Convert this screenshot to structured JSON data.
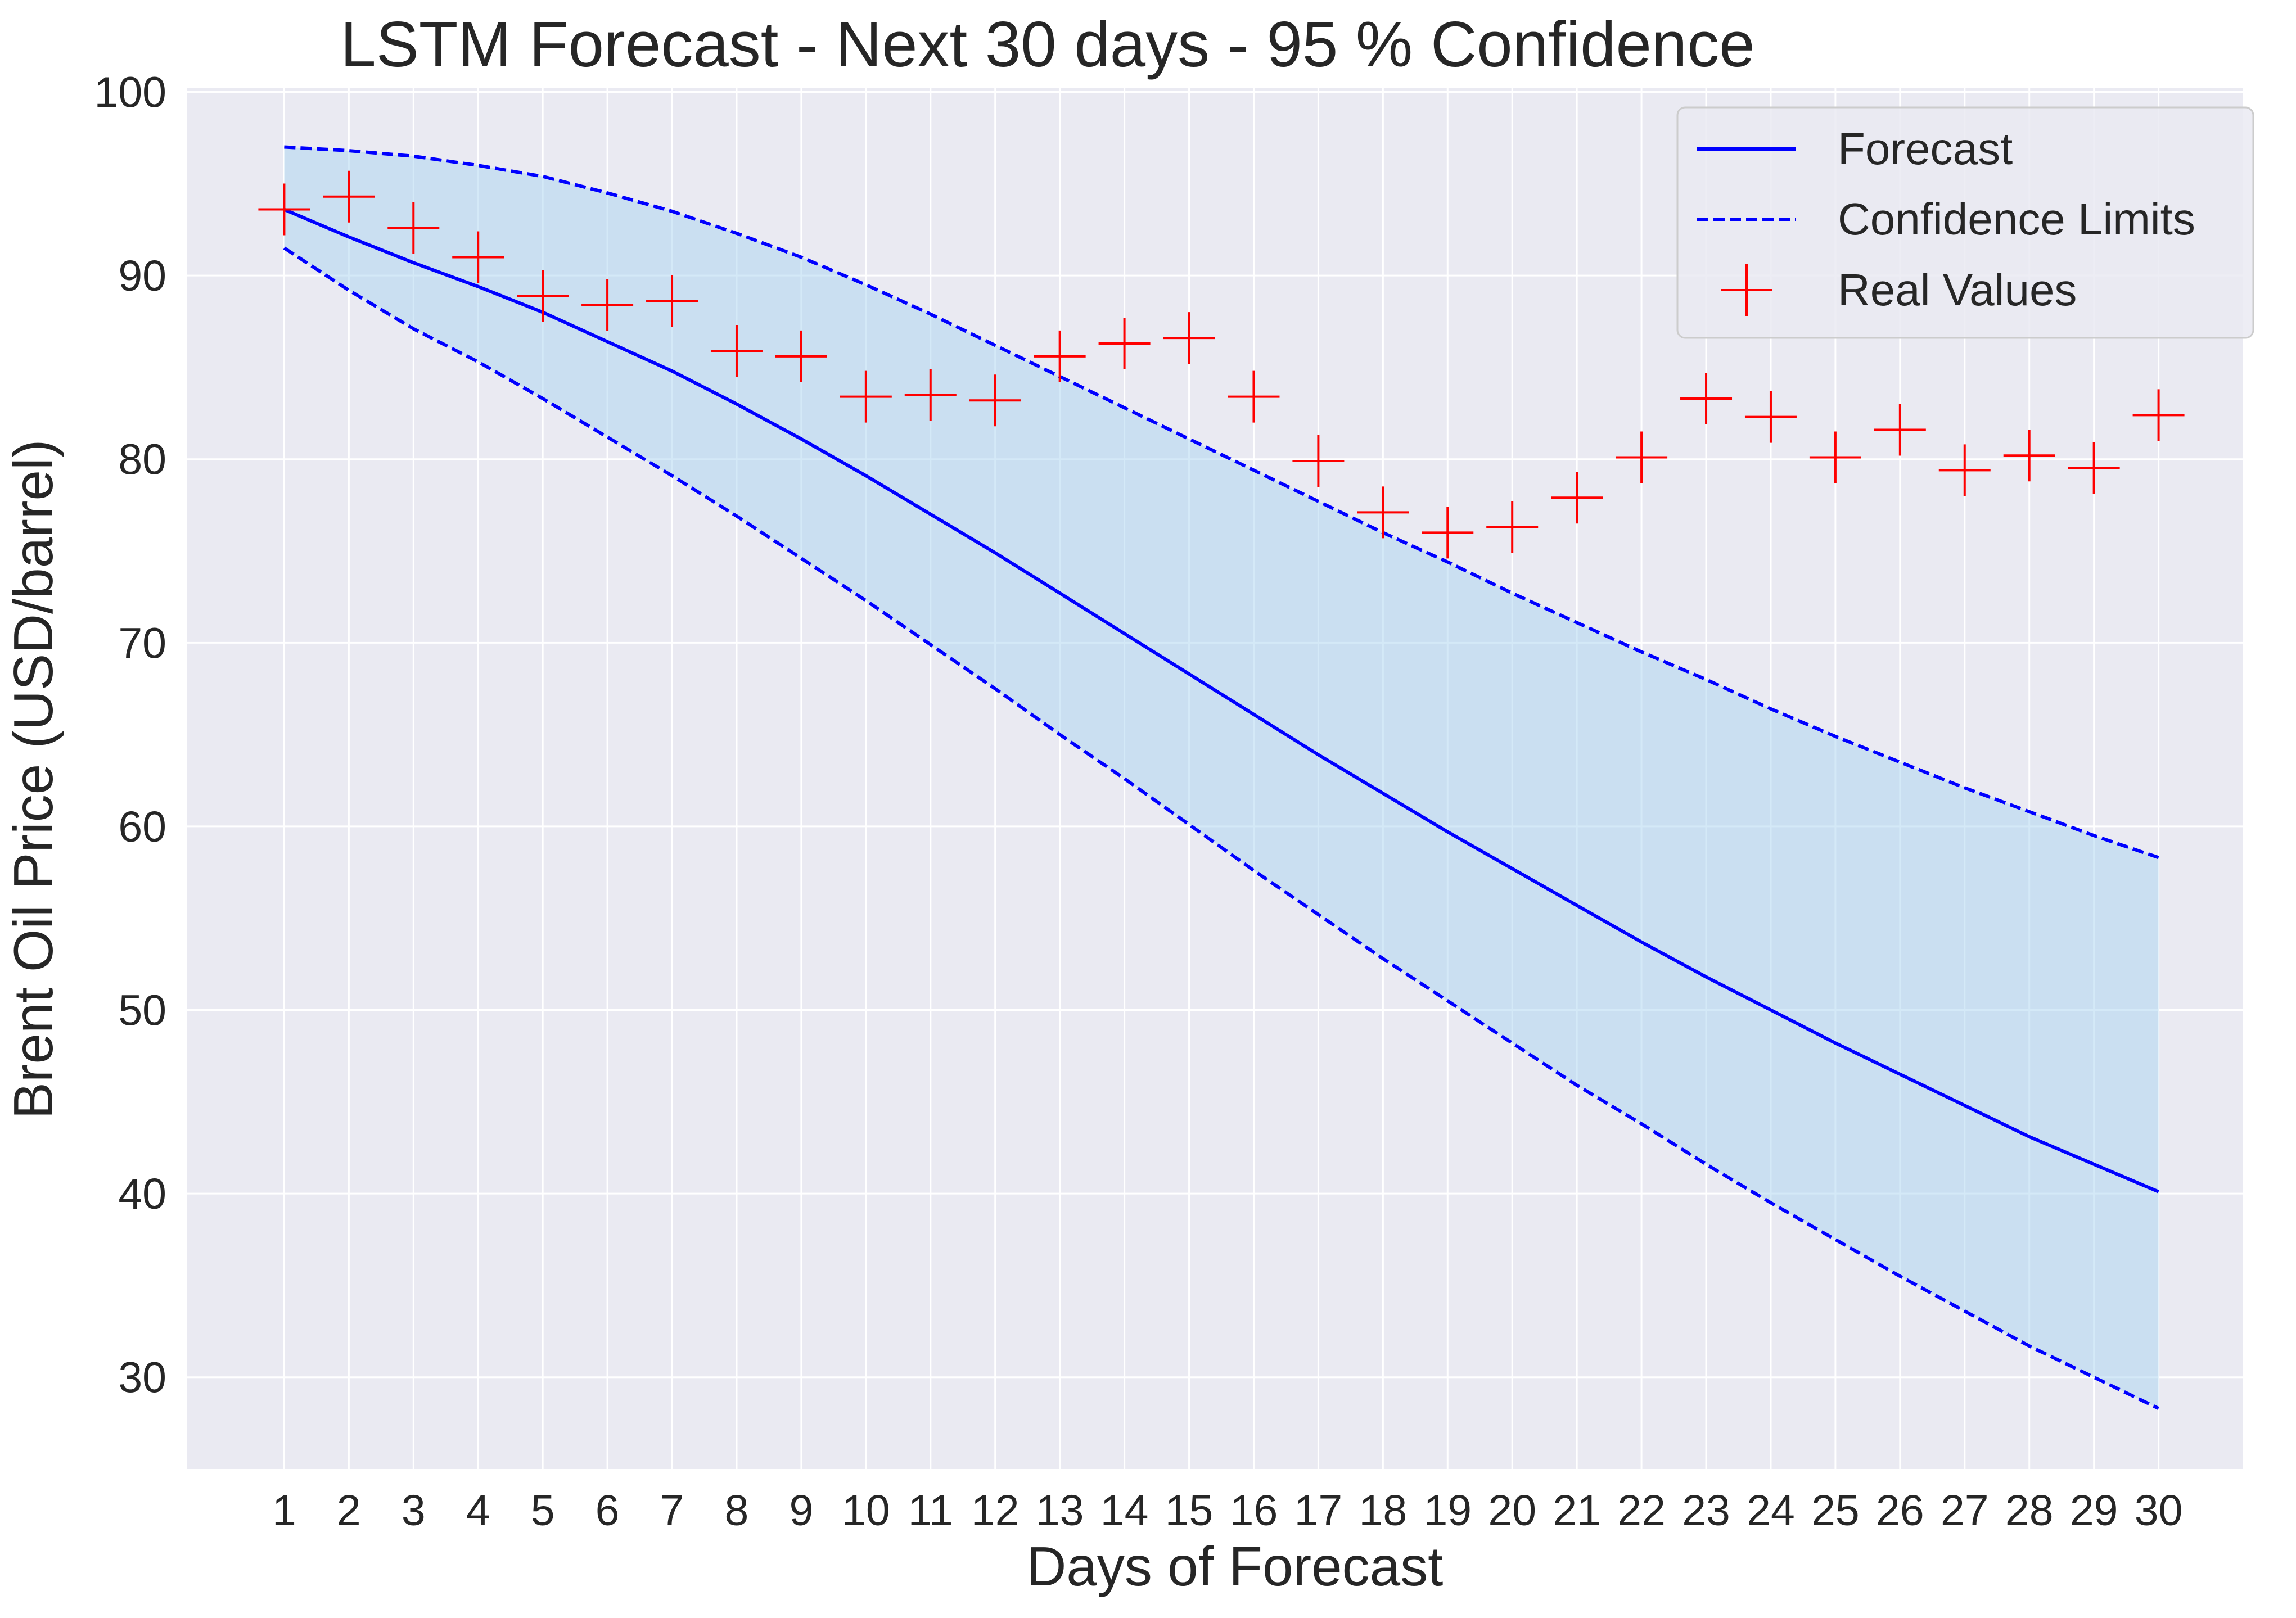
{
  "chart_data": {
    "type": "line",
    "title": "LSTM Forecast - Next 30 days - 95 % Confidence",
    "xlabel": "Days of Forecast",
    "ylabel": "Brent Oil Price (USD/barrel)",
    "xlim": [
      -0.5,
      31.3
    ],
    "ylim": [
      25,
      100.2
    ],
    "x": [
      1,
      2,
      3,
      4,
      5,
      6,
      7,
      8,
      9,
      10,
      11,
      12,
      13,
      14,
      15,
      16,
      17,
      18,
      19,
      20,
      21,
      22,
      23,
      24,
      25,
      26,
      27,
      28,
      29,
      30
    ],
    "xticks": [
      1,
      2,
      3,
      4,
      5,
      6,
      7,
      8,
      9,
      10,
      11,
      12,
      13,
      14,
      15,
      16,
      17,
      18,
      19,
      20,
      21,
      22,
      23,
      24,
      25,
      26,
      27,
      28,
      29,
      30
    ],
    "yticks": [
      30,
      40,
      50,
      60,
      70,
      80,
      90,
      100
    ],
    "grid": true,
    "legend_position": "top-right",
    "confidence_band": true,
    "series": [
      {
        "name": "Forecast",
        "style": "solid",
        "color": "#0000ff",
        "values": [
          93.6,
          92.1,
          90.7,
          89.4,
          88.0,
          86.4,
          84.8,
          83.0,
          81.1,
          79.1,
          77.0,
          74.9,
          72.7,
          70.5,
          68.3,
          66.1,
          63.9,
          61.8,
          59.7,
          57.7,
          55.7,
          53.7,
          51.8,
          50.0,
          48.2,
          46.5,
          44.8,
          43.1,
          41.6,
          40.1
        ]
      },
      {
        "name": "Confidence Limits",
        "style": "dashed",
        "color": "#0000ff",
        "upper": [
          97.0,
          96.8,
          96.5,
          96.0,
          95.4,
          94.5,
          93.5,
          92.3,
          91.0,
          89.5,
          87.9,
          86.2,
          84.5,
          82.8,
          81.1,
          79.4,
          77.7,
          76.0,
          74.4,
          72.7,
          71.1,
          69.5,
          68.0,
          66.4,
          64.9,
          63.5,
          62.1,
          60.8,
          59.5,
          58.3
        ],
        "lower": [
          91.5,
          89.2,
          87.1,
          85.3,
          83.3,
          81.2,
          79.1,
          76.9,
          74.6,
          72.3,
          69.9,
          67.5,
          65.0,
          62.6,
          60.1,
          57.6,
          55.2,
          52.8,
          50.5,
          48.2,
          45.9,
          43.8,
          41.6,
          39.5,
          37.5,
          35.5,
          33.6,
          31.7,
          30.0,
          28.3
        ]
      },
      {
        "name": "Real Values",
        "style": "marker",
        "marker": "+",
        "color": "#ff0000",
        "values": [
          93.6,
          94.3,
          92.6,
          91.0,
          88.9,
          88.4,
          88.6,
          85.9,
          85.6,
          83.4,
          83.5,
          83.2,
          85.6,
          86.3,
          86.6,
          83.4,
          79.9,
          77.1,
          76.0,
          76.3,
          77.9,
          80.1,
          83.3,
          82.3,
          80.1,
          81.6,
          79.4,
          80.2,
          79.5,
          82.4
        ]
      }
    ]
  }
}
